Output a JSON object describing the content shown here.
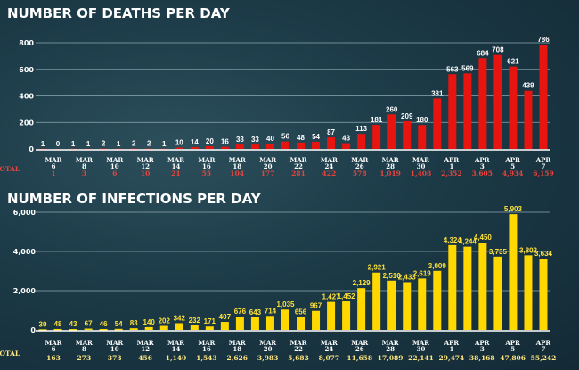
{
  "chart_data": [
    {
      "type": "bar",
      "title": "NUMBER OF DEATHS PER DAY",
      "color": "#e8140f",
      "label_color": "#ffffff",
      "total_color": "#e8433c",
      "ylim": [
        0,
        800
      ],
      "yticks": [
        "0",
        "200",
        "400",
        "600",
        "800"
      ],
      "ytick_values": [
        0,
        200,
        400,
        600,
        800
      ],
      "values": [
        1,
        0,
        1,
        1,
        2,
        1,
        2,
        2,
        1,
        10,
        14,
        20,
        16,
        33,
        33,
        40,
        56,
        48,
        54,
        87,
        43,
        113,
        181,
        260,
        209,
        180,
        381,
        563,
        569,
        684,
        708,
        621,
        439,
        786
      ],
      "x_labels": [
        [
          "MAR",
          "6"
        ],
        [
          "MAR",
          "8"
        ],
        [
          "MAR",
          "10"
        ],
        [
          "MAR",
          "12"
        ],
        [
          "MAR",
          "14"
        ],
        [
          "MAR",
          "16"
        ],
        [
          "MAR",
          "18"
        ],
        [
          "MAR",
          "20"
        ],
        [
          "MAR",
          "22"
        ],
        [
          "MAR",
          "24"
        ],
        [
          "MAR",
          "26"
        ],
        [
          "MAR",
          "28"
        ],
        [
          "MAR",
          "30"
        ],
        [
          "APR",
          "1"
        ],
        [
          "APR",
          "3"
        ],
        [
          "APR",
          "5"
        ],
        [
          "APR",
          "7"
        ]
      ],
      "total_label": "TOTAL",
      "totals": [
        "1",
        "3",
        "6",
        "10",
        "21",
        "55",
        "104",
        "177",
        "281",
        "422",
        "578",
        "1,019",
        "1,408",
        "2,352",
        "3,605",
        "4,934",
        "6,159"
      ],
      "grid": true
    },
    {
      "type": "bar",
      "title": "NUMBER OF INFECTIONS PER DAY",
      "color": "#ffd800",
      "label_color": "#ffe23a",
      "total_color": "#ffe680",
      "ylim": [
        0,
        6000
      ],
      "yticks": [
        "0",
        "2,000",
        "4,000",
        "6,000"
      ],
      "ytick_values": [
        0,
        2000,
        4000,
        6000
      ],
      "values": [
        30,
        48,
        43,
        67,
        46,
        54,
        83,
        140,
        202,
        342,
        232,
        171,
        407,
        676,
        643,
        714,
        1035,
        656,
        967,
        1427,
        1452,
        2129,
        2921,
        2510,
        2433,
        2619,
        3009,
        4324,
        4244,
        4450,
        3735,
        5903,
        3802,
        3634
      ],
      "x_labels": [
        [
          "MAR",
          "6"
        ],
        [
          "MAR",
          "8"
        ],
        [
          "MAR",
          "10"
        ],
        [
          "MAR",
          "12"
        ],
        [
          "MAR",
          "14"
        ],
        [
          "MAR",
          "16"
        ],
        [
          "MAR",
          "18"
        ],
        [
          "MAR",
          "20"
        ],
        [
          "MAR",
          "22"
        ],
        [
          "MAR",
          "24"
        ],
        [
          "MAR",
          "26"
        ],
        [
          "MAR",
          "28"
        ],
        [
          "MAR",
          "30"
        ],
        [
          "APR",
          "1"
        ],
        [
          "APR",
          "3"
        ],
        [
          "APR",
          "5"
        ],
        [
          "APR",
          "7"
        ]
      ],
      "total_label": "TOTAL",
      "totals": [
        "163",
        "273",
        "373",
        "456",
        "1,140",
        "1,543",
        "2,626",
        "3,983",
        "5,683",
        "8,077",
        "11,658",
        "17,089",
        "22,141",
        "29,474",
        "38,168",
        "47,806",
        "55,242"
      ],
      "grid": true
    }
  ]
}
